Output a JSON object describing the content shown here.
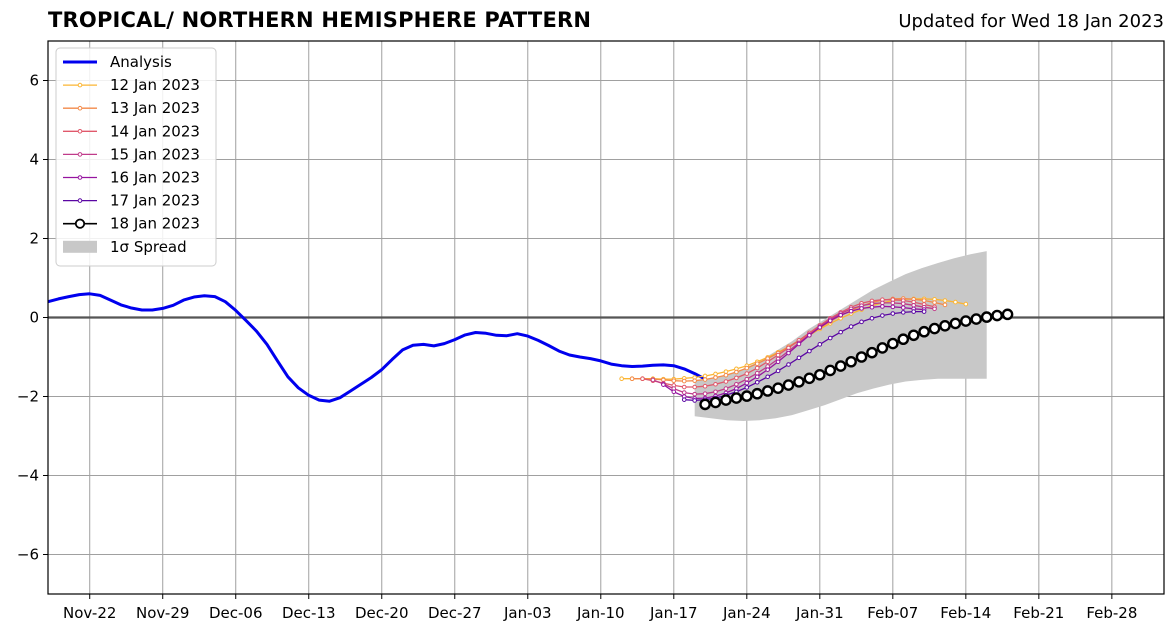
{
  "header": {
    "title": "TROPICAL/ NORTHERN HEMISPHERE PATTERN",
    "updated": "Updated for Wed 18 Jan 2023"
  },
  "colors": {
    "analysis": "#0000ee",
    "spread": "#c8c8c8",
    "grid": "#a0a0a0",
    "forecast": [
      "#fbb533",
      "#f38a49",
      "#e0596b",
      "#c03b8a",
      "#9614a0",
      "#5a06a3",
      "#000000"
    ]
  },
  "chart_data": {
    "type": "line",
    "title": "TROPICAL/ NORTHERN HEMISPHERE PATTERN",
    "xlabel": "",
    "ylabel": "",
    "x_axis": "date",
    "xlim": [
      "2023-11-18",
      "2024-03-04"
    ],
    "ylim": [
      -7,
      7
    ],
    "grid": true,
    "legend_position": "top-left",
    "x_ticks": [
      "Nov-22",
      "Nov-29",
      "Dec-06",
      "Dec-13",
      "Dec-20",
      "Dec-27",
      "Jan-03",
      "Jan-10",
      "Jan-17",
      "Jan-24",
      "Jan-31",
      "Feb-07",
      "Feb-14",
      "Feb-21",
      "Feb-28"
    ],
    "y_ticks": [
      "6",
      "4",
      "2",
      "0",
      "−2",
      "−4",
      "−6"
    ],
    "analysis": {
      "name": "Analysis",
      "start": "2023-11-18",
      "values": [
        0.4,
        0.47,
        0.53,
        0.58,
        0.6,
        0.56,
        0.44,
        0.32,
        0.24,
        0.19,
        0.19,
        0.23,
        0.31,
        0.44,
        0.52,
        0.55,
        0.53,
        0.4,
        0.18,
        -0.08,
        -0.35,
        -0.68,
        -1.1,
        -1.5,
        -1.78,
        -1.97,
        -2.09,
        -2.12,
        -2.03,
        -1.86,
        -1.69,
        -1.52,
        -1.32,
        -1.06,
        -0.82,
        -0.7,
        -0.68,
        -0.72,
        -0.66,
        -0.56,
        -0.44,
        -0.38,
        -0.4,
        -0.45,
        -0.46,
        -0.41,
        -0.47,
        -0.58,
        -0.71,
        -0.85,
        -0.95,
        -1.0,
        -1.04,
        -1.1,
        -1.18,
        -1.22,
        -1.24,
        -1.23,
        -1.21,
        -1.2,
        -1.22,
        -1.3,
        -1.42,
        -1.56
      ]
    },
    "spread": {
      "name": "1σ Spread",
      "start": "2024-01-19",
      "upper": [
        -1.6,
        -1.55,
        -1.45,
        -1.3,
        -1.1,
        -0.85,
        -0.6,
        -0.3,
        -0.05,
        0.2,
        0.45,
        0.7,
        0.9,
        1.1,
        1.25,
        1.38,
        1.5,
        1.6,
        1.68
      ],
      "lower": [
        -2.5,
        -2.55,
        -2.6,
        -2.62,
        -2.6,
        -2.55,
        -2.47,
        -2.35,
        -2.22,
        -2.07,
        -1.92,
        -1.8,
        -1.7,
        -1.62,
        -1.58,
        -1.55,
        -1.55,
        -1.55,
        -1.55
      ]
    },
    "series": [
      {
        "name": "12 Jan 2023",
        "start": "2024-01-12",
        "values": [
          -1.55,
          -1.55,
          -1.55,
          -1.55,
          -1.56,
          -1.56,
          -1.54,
          -1.52,
          -1.48,
          -1.43,
          -1.37,
          -1.3,
          -1.22,
          -1.12,
          -1.01,
          -0.88,
          -0.75,
          -0.6,
          -0.45,
          -0.29,
          -0.15,
          -0.02,
          0.1,
          0.2,
          0.3,
          0.37,
          0.43,
          0.46,
          0.47,
          0.47,
          0.46,
          0.43,
          0.39,
          0.34
        ]
      },
      {
        "name": "13 Jan 2023",
        "start": "2024-01-13",
        "values": [
          -1.55,
          -1.55,
          -1.56,
          -1.58,
          -1.6,
          -1.61,
          -1.6,
          -1.57,
          -1.52,
          -1.46,
          -1.38,
          -1.28,
          -1.17,
          -1.04,
          -0.9,
          -0.74,
          -0.58,
          -0.42,
          -0.26,
          -0.1,
          0.05,
          0.18,
          0.29,
          0.38,
          0.44,
          0.47,
          0.48,
          0.46,
          0.43,
          0.38,
          0.32
        ]
      },
      {
        "name": "14 Jan 2023",
        "start": "2024-01-14",
        "values": [
          -1.55,
          -1.6,
          -1.66,
          -1.72,
          -1.76,
          -1.76,
          -1.74,
          -1.69,
          -1.62,
          -1.53,
          -1.42,
          -1.28,
          -1.12,
          -0.95,
          -0.77,
          -0.58,
          -0.39,
          -0.2,
          -0.02,
          0.13,
          0.26,
          0.36,
          0.42,
          0.45,
          0.45,
          0.43,
          0.39,
          0.33,
          0.27
        ]
      },
      {
        "name": "15 Jan 2023",
        "start": "2024-01-15",
        "values": [
          -1.58,
          -1.68,
          -1.8,
          -1.9,
          -1.94,
          -1.93,
          -1.88,
          -1.8,
          -1.69,
          -1.56,
          -1.41,
          -1.24,
          -1.05,
          -0.85,
          -0.64,
          -0.43,
          -0.23,
          -0.05,
          0.1,
          0.22,
          0.3,
          0.35,
          0.37,
          0.37,
          0.35,
          0.31,
          0.26,
          0.22
        ]
      },
      {
        "name": "16 Jan 2023",
        "start": "2024-01-16",
        "values": [
          -1.7,
          -1.88,
          -2.0,
          -2.05,
          -2.04,
          -1.99,
          -1.91,
          -1.8,
          -1.66,
          -1.5,
          -1.32,
          -1.12,
          -0.9,
          -0.67,
          -0.45,
          -0.25,
          -0.08,
          0.06,
          0.16,
          0.23,
          0.26,
          0.28,
          0.27,
          0.25,
          0.22,
          0.2
        ]
      },
      {
        "name": "17 Jan 2023",
        "start": "2024-01-18",
        "values": [
          -2.08,
          -2.1,
          -2.08,
          -2.04,
          -1.97,
          -1.88,
          -1.77,
          -1.64,
          -1.5,
          -1.35,
          -1.19,
          -1.02,
          -0.85,
          -0.68,
          -0.52,
          -0.37,
          -0.23,
          -0.11,
          -0.02,
          0.05,
          0.1,
          0.13,
          0.15,
          0.15
        ]
      },
      {
        "name": "18 Jan 2023",
        "start": "2024-01-20",
        "values": [
          -2.2,
          -2.15,
          -2.09,
          -2.04,
          -1.99,
          -1.93,
          -1.86,
          -1.79,
          -1.71,
          -1.63,
          -1.54,
          -1.45,
          -1.34,
          -1.23,
          -1.12,
          -1.0,
          -0.89,
          -0.77,
          -0.66,
          -0.55,
          -0.45,
          -0.36,
          -0.28,
          -0.21,
          -0.15,
          -0.09,
          -0.04,
          0.01,
          0.05,
          0.08
        ]
      }
    ]
  }
}
